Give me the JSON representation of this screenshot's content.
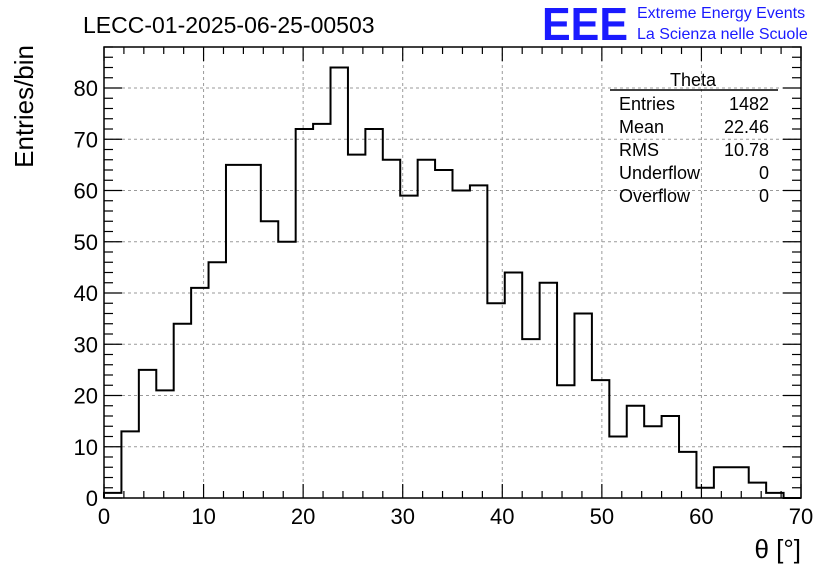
{
  "title": "LECC-01-2025-06-25-00503",
  "logo": {
    "mark": "EEE",
    "line1": "Extreme Energy Events",
    "line2": "La Scienza nelle Scuole",
    "color": "#1a1aff"
  },
  "stats": {
    "name": "Theta",
    "rows": [
      {
        "label": "Entries",
        "value": "1482"
      },
      {
        "label": "Mean",
        "value": "22.46"
      },
      {
        "label": "RMS",
        "value": "10.78"
      },
      {
        "label": "Underflow",
        "value": "0"
      },
      {
        "label": "Overflow",
        "value": "0"
      }
    ]
  },
  "chart_data": {
    "type": "bar",
    "style": "step-histogram",
    "xlabel": "θ [°]",
    "ylabel": "Entries/bin",
    "xlim": [
      0,
      70
    ],
    "ylim": [
      0,
      88
    ],
    "grid": true,
    "bin_width": 1.75,
    "xticks": [
      0,
      10,
      20,
      30,
      40,
      50,
      60,
      70
    ],
    "yticks": [
      0,
      10,
      20,
      30,
      40,
      50,
      60,
      70,
      80
    ],
    "x_bin_low": [
      0,
      1.75,
      3.5,
      5.25,
      7,
      8.75,
      10.5,
      12.25,
      14,
      15.75,
      17.5,
      19.25,
      21,
      22.75,
      24.5,
      26.25,
      28,
      29.75,
      31.5,
      33.25,
      35,
      36.75,
      38.5,
      40.25,
      42,
      43.75,
      45.5,
      47.25,
      49,
      50.75,
      52.5,
      54.25,
      56,
      57.75,
      59.5,
      61.25,
      63,
      64.75,
      66.5,
      68.25
    ],
    "values": [
      1,
      13,
      25,
      21,
      34,
      41,
      46,
      65,
      65,
      54,
      50,
      72,
      73,
      84,
      67,
      72,
      66,
      59,
      66,
      64,
      60,
      61,
      38,
      44,
      31,
      42,
      22,
      36,
      23,
      12,
      18,
      14,
      16,
      9,
      2,
      6,
      6,
      3,
      1,
      0
    ]
  }
}
